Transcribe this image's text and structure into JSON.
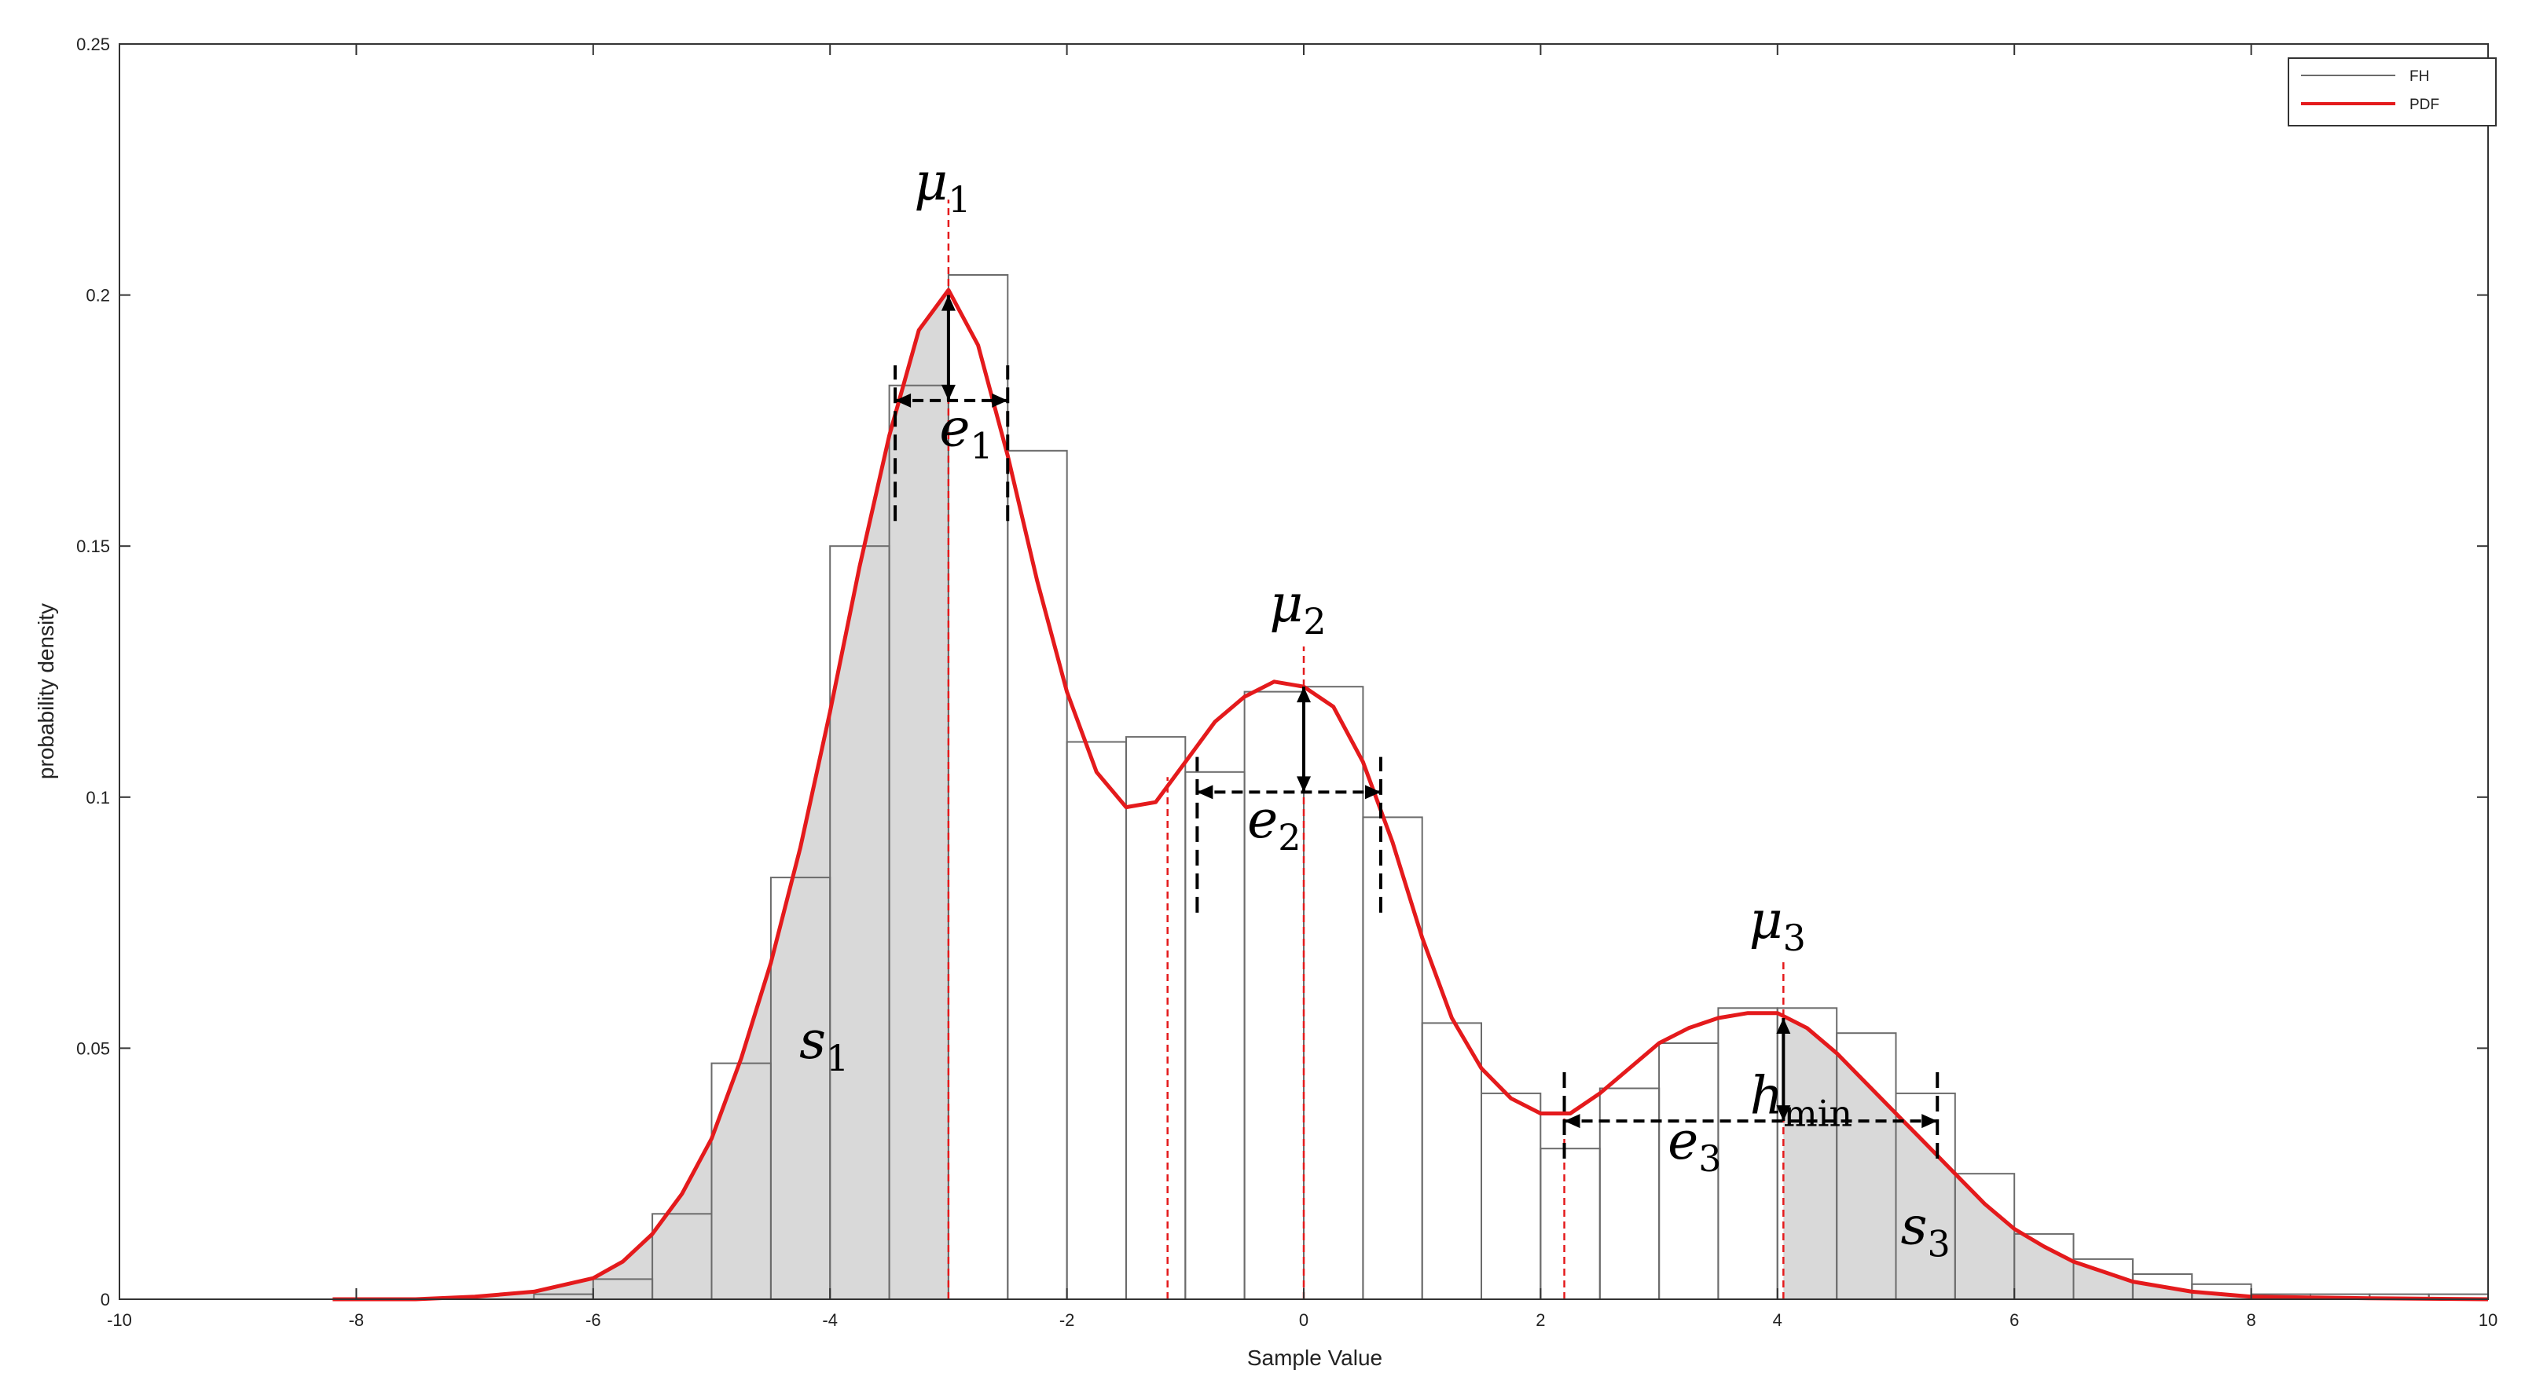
{
  "chart_data": {
    "type": "bar",
    "title": "",
    "xlabel": "Sample Value",
    "ylabel": "probability density",
    "xlim": [
      -10,
      10
    ],
    "ylim": [
      0,
      0.25
    ],
    "x_ticks": [
      "-10",
      "-8",
      "-6",
      "-4",
      "-2",
      "0",
      "2",
      "4",
      "6",
      "8",
      "10"
    ],
    "y_ticks": [
      "0",
      "0.05",
      "0.1",
      "0.15",
      "0.2",
      "0.25"
    ],
    "grid": false,
    "legend": {
      "position": "top-right",
      "entries": [
        {
          "label": "FH",
          "color": "#6b6b6b"
        },
        {
          "label": "PDF",
          "color": "#e41a1c"
        }
      ]
    },
    "series": [
      {
        "name": "FH",
        "kind": "histogram",
        "bin_width": 0.5,
        "bin_starts": [
          -6.5,
          -6,
          -5.5,
          -5,
          -4.5,
          -4,
          -3.5,
          -3,
          -2.5,
          -2,
          -1.5,
          -1,
          -0.5,
          0,
          0.5,
          1,
          1.5,
          2,
          2.5,
          3,
          3.5,
          4,
          4.5,
          5,
          5.5,
          6,
          6.5,
          7,
          7.5,
          8,
          8.5,
          9,
          9.5
        ],
        "values": [
          0.001,
          0.004,
          0.017,
          0.047,
          0.084,
          0.15,
          0.182,
          0.204,
          0.169,
          0.111,
          0.112,
          0.105,
          0.121,
          0.122,
          0.096,
          0.055,
          0.041,
          0.03,
          0.042,
          0.051,
          0.058,
          0.058,
          0.053,
          0.041,
          0.025,
          0.013,
          0.008,
          0.005,
          0.003,
          0.001,
          0.001,
          0.001,
          0.001
        ]
      },
      {
        "name": "PDF",
        "kind": "line",
        "x": [
          -8.2,
          -7.5,
          -7,
          -6.5,
          -6,
          -5.75,
          -5.5,
          -5.25,
          -5,
          -4.75,
          -4.5,
          -4.25,
          -4,
          -3.75,
          -3.5,
          -3.25,
          -3,
          -2.75,
          -2.5,
          -2.25,
          -2,
          -1.75,
          -1.5,
          -1.25,
          -1,
          -0.75,
          -0.5,
          -0.25,
          0,
          0.25,
          0.5,
          0.75,
          1,
          1.25,
          1.5,
          1.75,
          2,
          2.25,
          2.5,
          2.75,
          3,
          3.25,
          3.5,
          3.75,
          4,
          4.25,
          4.5,
          4.75,
          5,
          5.25,
          5.5,
          5.75,
          6,
          6.25,
          6.5,
          7,
          7.5,
          8,
          9,
          10
        ],
        "values": [
          0,
          0,
          0.0005,
          0.0015,
          0.0042,
          0.0075,
          0.013,
          0.021,
          0.032,
          0.048,
          0.067,
          0.09,
          0.117,
          0.146,
          0.172,
          0.193,
          0.201,
          0.19,
          0.168,
          0.143,
          0.121,
          0.105,
          0.098,
          0.099,
          0.107,
          0.115,
          0.12,
          0.123,
          0.122,
          0.118,
          0.107,
          0.091,
          0.072,
          0.056,
          0.046,
          0.04,
          0.037,
          0.037,
          0.041,
          0.046,
          0.051,
          0.054,
          0.056,
          0.057,
          0.057,
          0.054,
          0.049,
          0.043,
          0.037,
          0.031,
          0.025,
          0.019,
          0.014,
          0.0105,
          0.0075,
          0.0035,
          0.0015,
          0.0005,
          0.0002,
          0
        ]
      }
    ],
    "shaded_regions": [
      {
        "x_from": -8.2,
        "x_to": -3.0,
        "fill": "#d9d9d9"
      },
      {
        "x_from": 4.05,
        "x_to": 10,
        "fill": "#d9d9d9"
      }
    ],
    "reference_lines": [
      {
        "x": -3.0,
        "y_top": 0.219,
        "color": "#e41a1c",
        "style": "dashed"
      },
      {
        "x": -1.15,
        "y_top": 0.104,
        "color": "#e41a1c",
        "style": "dashed"
      },
      {
        "x": 0.0,
        "y_top": 0.13,
        "color": "#e41a1c",
        "style": "dashed"
      },
      {
        "x": 2.2,
        "y_top": 0.036,
        "color": "#e41a1c",
        "style": "dashed"
      },
      {
        "x": 4.05,
        "y_top": 0.068,
        "color": "#e41a1c",
        "style": "dashed"
      }
    ],
    "annotations": {
      "width_markers": [
        {
          "x1": -3.45,
          "x2": -2.5,
          "y": 0.179,
          "tick_y": [
            0.155,
            0.186
          ]
        },
        {
          "x1": -0.9,
          "x2": 0.65,
          "y": 0.101,
          "tick_y": [
            0.077,
            0.108
          ]
        },
        {
          "x1": 2.2,
          "x2": 5.35,
          "y": 0.0355,
          "tick_y": [
            0.028,
            0.046
          ]
        }
      ],
      "height_markers": [
        {
          "x": -3.0,
          "y1": 0.179,
          "y2": 0.2
        },
        {
          "x": 0.0,
          "y1": 0.101,
          "y2": 0.122
        },
        {
          "x": 4.05,
          "y1": 0.0355,
          "y2": 0.056
        }
      ],
      "labels": [
        {
          "id": "mu1",
          "main": "μ",
          "sub": "1",
          "x": -3.05,
          "y": 0.219
        },
        {
          "id": "mu2",
          "main": "μ",
          "sub": "2",
          "x": -0.05,
          "y": 0.135
        },
        {
          "id": "mu3",
          "main": "μ",
          "sub": "3",
          "x": 4.0,
          "y": 0.072
        },
        {
          "id": "e1",
          "main": "e",
          "sub": "1",
          "x": -2.85,
          "y": 0.17
        },
        {
          "id": "e2",
          "main": "e",
          "sub": "2",
          "x": -0.25,
          "y": 0.092
        },
        {
          "id": "e3",
          "main": "e",
          "sub": "3",
          "x": 3.3,
          "y": 0.028
        },
        {
          "id": "s1",
          "main": "s",
          "sub": "1",
          "x": -4.05,
          "y": 0.048
        },
        {
          "id": "s3",
          "main": "s",
          "sub": "3",
          "x": 5.25,
          "y": 0.011
        },
        {
          "id": "hmin",
          "main": "h",
          "sub": "min",
          "x": 4.2,
          "y": 0.037
        }
      ]
    }
  }
}
